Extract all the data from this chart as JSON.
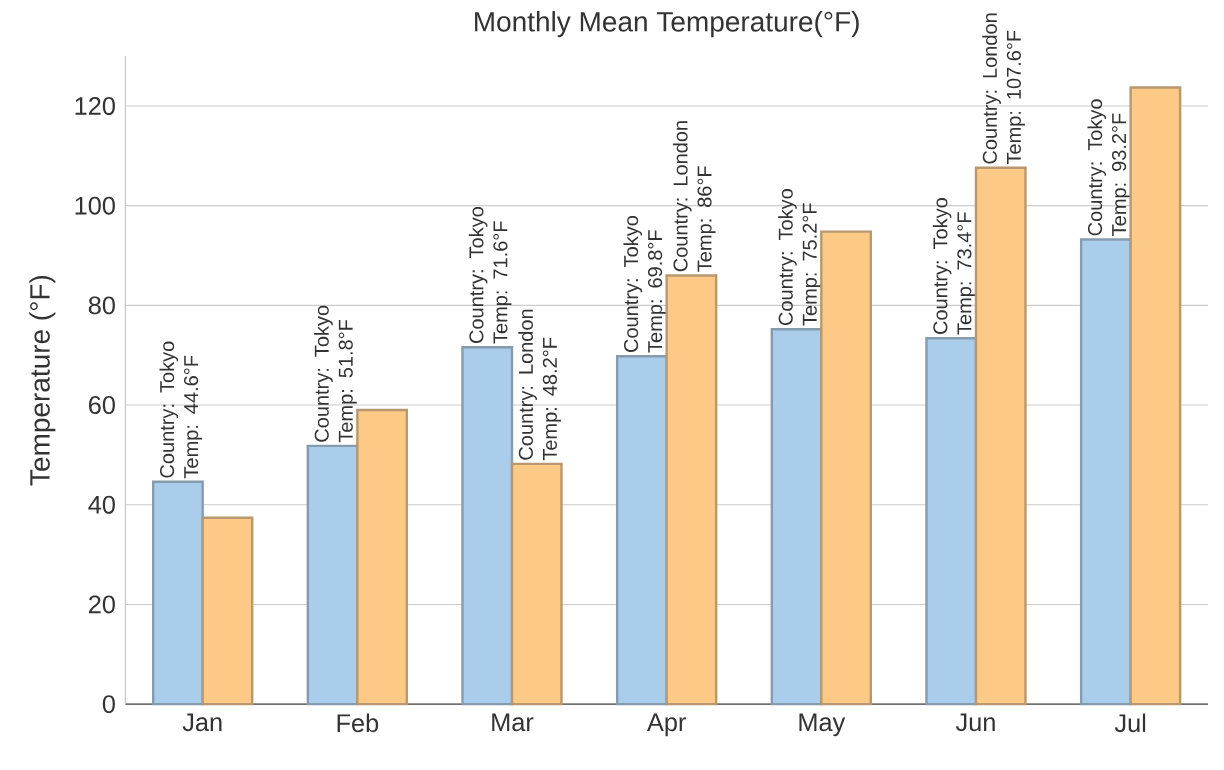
{
  "chart_data": {
    "type": "bar",
    "title": "Monthly Mean Temperature(°F)",
    "ylabel": "Temperature (°F)",
    "categories": [
      "Jan",
      "Feb",
      "Mar",
      "Apr",
      "May",
      "Jun",
      "Jul"
    ],
    "series": [
      {
        "color": "#abcdec",
        "values": [
          44.6,
          51.8,
          71.6,
          69.8,
          75.2,
          73.4,
          93.2
        ],
        "value_labels": [
          "Country: Tokyo Temp: 44.6°F",
          "Country: Tokyo Temp: 51.8°F",
          "Country: Tokyo Temp: 71.6°F",
          "Country: Tokyo Temp: 69.8°F",
          "Country: Tokyo Temp: 75.2°F",
          "Country: Tokyo Temp: 73.4°F",
          "Country: Tokyo Temp: 93.2°F"
        ]
      },
      {
        "color": "#fdc987",
        "values": [
          37.4,
          59,
          48.2,
          86,
          94.8,
          107.6,
          123.7
        ],
        "value_labels": [
          null,
          null,
          "Country: London Temp: 48.2°F",
          "Country: London Temp: 86°F",
          null,
          "Country: London Temp: 107.6°F",
          null
        ]
      }
    ],
    "ylim": [
      0,
      130
    ],
    "yticks": [
      0,
      20,
      40,
      60,
      80,
      100,
      120
    ],
    "grid": "y"
  }
}
